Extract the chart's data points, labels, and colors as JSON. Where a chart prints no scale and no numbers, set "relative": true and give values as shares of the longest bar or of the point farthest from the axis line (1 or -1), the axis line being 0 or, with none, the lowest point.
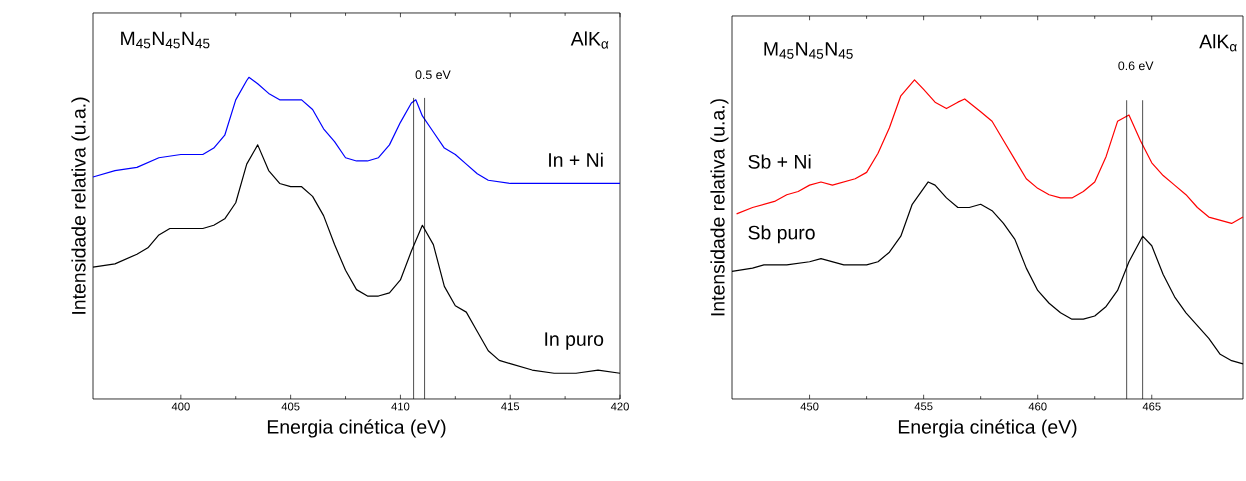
{
  "chart_data": [
    {
      "type": "line",
      "xlabel": "Energia cinética (eV)",
      "ylabel": "Intensidade relativa (u.a.)",
      "relative": true,
      "xlim": [
        396,
        420
      ],
      "xticks": [
        400,
        405,
        410,
        415,
        420
      ],
      "annotations": [
        "M$_{45}$N$_{45}$N$_{45}$",
        "AlK$_{α}$",
        "0.5 eV"
      ],
      "ref_lines": [
        {
          "axis": "x",
          "value": 410.6,
          "color": "#000000"
        },
        {
          "axis": "x",
          "value": 411.1,
          "color": "#000000"
        }
      ],
      "series": [
        {
          "name": "In + Ni",
          "color": "#0000ff",
          "x": [
            396,
            397,
            398,
            399,
            400,
            401,
            401.5,
            402,
            402.5,
            403,
            403.1,
            403.5,
            404,
            404.5,
            405,
            405.5,
            406,
            406.5,
            407,
            407.5,
            408,
            408.5,
            409,
            409.5,
            410,
            410.5,
            410.7,
            411,
            411.5,
            412,
            412.5,
            413,
            413.5,
            414,
            415,
            416,
            417,
            418,
            419,
            420
          ],
          "values": [
            0.69,
            0.71,
            0.72,
            0.75,
            0.76,
            0.76,
            0.78,
            0.82,
            0.93,
            0.99,
            1.0,
            0.98,
            0.95,
            0.93,
            0.93,
            0.93,
            0.9,
            0.84,
            0.8,
            0.75,
            0.74,
            0.74,
            0.75,
            0.79,
            0.86,
            0.92,
            0.93,
            0.88,
            0.83,
            0.78,
            0.76,
            0.73,
            0.7,
            0.68,
            0.67,
            0.67,
            0.67,
            0.67,
            0.67,
            0.67
          ]
        },
        {
          "name": "In puro",
          "color": "#000000",
          "x": [
            396,
            397,
            398,
            398.5,
            399,
            399.5,
            400,
            401,
            401.5,
            402,
            402.5,
            403,
            403.5,
            404,
            404.5,
            405,
            405.5,
            406,
            406.5,
            407,
            407.5,
            408,
            408.5,
            409,
            409.5,
            410,
            410.5,
            411,
            411.5,
            412,
            412.5,
            413,
            413.5,
            414,
            414.5,
            415,
            416,
            417,
            418,
            419,
            420
          ],
          "values": [
            0.41,
            0.42,
            0.45,
            0.47,
            0.51,
            0.53,
            0.53,
            0.53,
            0.54,
            0.56,
            0.61,
            0.73,
            0.79,
            0.71,
            0.67,
            0.66,
            0.66,
            0.63,
            0.57,
            0.48,
            0.4,
            0.34,
            0.32,
            0.32,
            0.33,
            0.37,
            0.46,
            0.54,
            0.48,
            0.35,
            0.29,
            0.27,
            0.21,
            0.15,
            0.12,
            0.11,
            0.09,
            0.08,
            0.08,
            0.09,
            0.08
          ]
        }
      ]
    },
    {
      "type": "line",
      "xlabel": "Energia cinética (eV)",
      "ylabel": "Intensidade relativa (u.a.)",
      "relative": true,
      "xlim": [
        446.6,
        469
      ],
      "xticks": [
        450,
        455,
        460,
        465
      ],
      "annotations": [
        "M$_{45}$N$_{45}$N$_{45}$",
        "AlK$_{α}$",
        "0.6 eV"
      ],
      "ref_lines": [
        {
          "axis": "x",
          "value": 463.9,
          "color": "#000000"
        },
        {
          "axis": "x",
          "value": 464.6,
          "color": "#000000"
        }
      ],
      "series": [
        {
          "name": "Sb + Ni",
          "color": "#ff0000",
          "x": [
            446.8,
            447.5,
            448,
            448.5,
            449,
            449.5,
            450,
            450.5,
            451,
            451.5,
            452,
            452.5,
            453,
            453.5,
            454,
            454.6,
            455,
            455.5,
            456,
            456.5,
            456.8,
            457.5,
            458,
            458.5,
            459,
            459.5,
            460,
            460.5,
            461,
            461.5,
            462,
            462.5,
            463,
            463.5,
            464,
            464.5,
            465,
            465.5,
            466,
            466.5,
            467,
            467.5,
            468,
            468.5,
            469
          ],
          "values": [
            0.58,
            0.6,
            0.61,
            0.62,
            0.64,
            0.65,
            0.67,
            0.68,
            0.67,
            0.68,
            0.69,
            0.71,
            0.77,
            0.85,
            0.95,
            1.0,
            0.97,
            0.93,
            0.91,
            0.93,
            0.94,
            0.9,
            0.87,
            0.81,
            0.75,
            0.69,
            0.66,
            0.64,
            0.63,
            0.63,
            0.65,
            0.68,
            0.76,
            0.87,
            0.89,
            0.81,
            0.74,
            0.7,
            0.67,
            0.64,
            0.6,
            0.57,
            0.56,
            0.55,
            0.57
          ]
        },
        {
          "name": "Sb puro",
          "color": "#000000",
          "x": [
            446.6,
            447.5,
            448,
            449,
            450,
            450.5,
            451,
            451.5,
            452,
            452.5,
            453,
            453.5,
            454,
            454.5,
            455.2,
            455.5,
            456,
            456.5,
            457,
            457.5,
            458,
            458.5,
            459,
            459.5,
            460,
            460.5,
            461,
            461.5,
            462,
            462.5,
            463,
            463.5,
            464,
            464.6,
            465,
            465.5,
            466,
            466.5,
            467,
            467.5,
            468,
            468.5,
            469
          ],
          "values": [
            0.4,
            0.41,
            0.42,
            0.42,
            0.43,
            0.44,
            0.43,
            0.42,
            0.42,
            0.42,
            0.43,
            0.46,
            0.51,
            0.61,
            0.68,
            0.67,
            0.63,
            0.6,
            0.6,
            0.61,
            0.59,
            0.55,
            0.5,
            0.41,
            0.34,
            0.3,
            0.27,
            0.25,
            0.25,
            0.26,
            0.29,
            0.34,
            0.43,
            0.51,
            0.48,
            0.39,
            0.32,
            0.27,
            0.23,
            0.19,
            0.14,
            0.12,
            0.11
          ]
        }
      ]
    }
  ]
}
